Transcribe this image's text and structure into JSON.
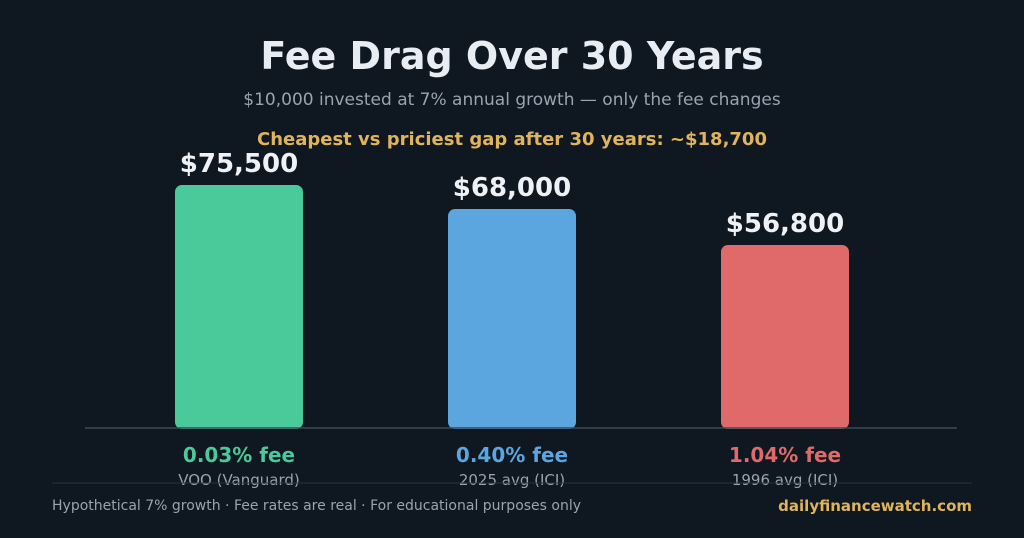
{
  "title": "Fee Drag Over 30 Years",
  "subtitle": "$10,000 invested at 7% annual growth  —  only the fee changes",
  "gap_note": "Cheapest vs priciest gap after 30 years:  ~$18,700",
  "footer": {
    "note": "Hypothetical 7% growth  ·  Fee rates are real  ·  For educational purposes only",
    "source": "dailyfinancewatch.com"
  },
  "colors": {
    "background": "#0f1720",
    "green": "#4ac99b",
    "blue": "#5ca6e0",
    "red": "#e06a6a",
    "gold": "#e0b45c"
  },
  "chart_data": {
    "type": "bar",
    "categories": [
      "VOO (Vanguard)",
      "2025 avg (ICI)",
      "1996 avg (ICI)"
    ],
    "values": [
      75500,
      68000,
      56800
    ],
    "value_labels": [
      "$75,500",
      "$68,000",
      "$56,800"
    ],
    "fee_labels": [
      "0.03% fee",
      "0.40% fee",
      "1.04% fee"
    ],
    "bar_colors": [
      "#4ac99b",
      "#5ca6e0",
      "#e06a6a"
    ],
    "title": "Fee Drag Over 30 Years",
    "xlabel": "",
    "ylabel": "",
    "ylim": [
      0,
      75500
    ],
    "grid": false,
    "legend": "none"
  }
}
